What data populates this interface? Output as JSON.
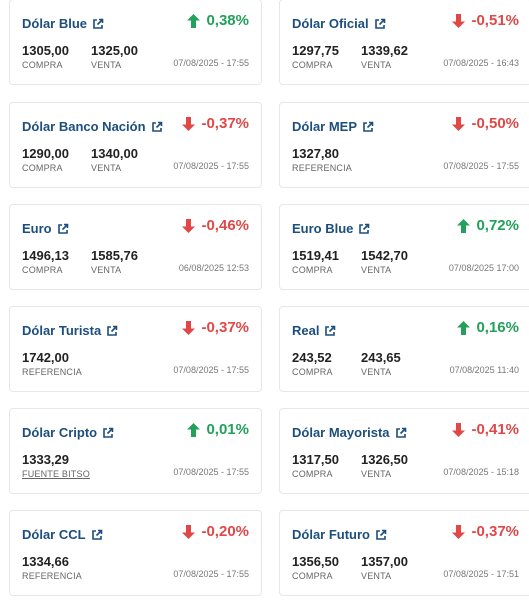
{
  "colors": {
    "title": "#1c4e7e",
    "up": "#23a05a",
    "down": "#e04848"
  },
  "cards": [
    {
      "name": "Dólar Blue",
      "change": "0,38%",
      "direction": "up",
      "values": [
        {
          "num": "1305,00",
          "label": "COMPRA"
        },
        {
          "num": "1325,00",
          "label": "VENTA"
        }
      ],
      "date": "07/08/2025 - 17:55"
    },
    {
      "name": "Dólar Oficial",
      "change": "-0,51%",
      "direction": "down",
      "values": [
        {
          "num": "1297,75",
          "label": "COMPRA"
        },
        {
          "num": "1339,62",
          "label": "VENTA"
        }
      ],
      "date": "07/08/2025 - 16:43"
    },
    {
      "name": "Dólar Banco Nación",
      "change": "-0,37%",
      "direction": "down",
      "values": [
        {
          "num": "1290,00",
          "label": "COMPRA"
        },
        {
          "num": "1340,00",
          "label": "VENTA"
        }
      ],
      "date": "07/08/2025 - 17:55"
    },
    {
      "name": "Dólar MEP",
      "change": "-0,50%",
      "direction": "down",
      "values": [
        {
          "num": "1327,80",
          "label": "REFERENCIA"
        }
      ],
      "date": "07/08/2025 - 17:55"
    },
    {
      "name": "Euro",
      "change": "-0,46%",
      "direction": "down",
      "values": [
        {
          "num": "1496,13",
          "label": "COMPRA"
        },
        {
          "num": "1585,76",
          "label": "VENTA"
        }
      ],
      "date": "06/08/2025 12:53"
    },
    {
      "name": "Euro Blue",
      "change": "0,72%",
      "direction": "up",
      "values": [
        {
          "num": "1519,41",
          "label": "COMPRA"
        },
        {
          "num": "1542,70",
          "label": "VENTA"
        }
      ],
      "date": "07/08/2025 17:00"
    },
    {
      "name": "Dólar Turista",
      "change": "-0,37%",
      "direction": "down",
      "values": [
        {
          "num": "1742,00",
          "label": "REFERENCIA"
        }
      ],
      "date": "07/08/2025 - 17:55"
    },
    {
      "name": "Real",
      "change": "0,16%",
      "direction": "up",
      "values": [
        {
          "num": "243,52",
          "label": "COMPRA"
        },
        {
          "num": "243,65",
          "label": "VENTA"
        }
      ],
      "date": "07/08/2025 11:40"
    },
    {
      "name": "Dólar Cripto",
      "change": "0,01%",
      "direction": "up",
      "values": [
        {
          "num": "1333,29",
          "label": "FUENTE BITSO",
          "underline": true
        }
      ],
      "date": "07/08/2025 - 17:55"
    },
    {
      "name": "Dólar Mayorista",
      "change": "-0,41%",
      "direction": "down",
      "values": [
        {
          "num": "1317,50",
          "label": "COMPRA"
        },
        {
          "num": "1326,50",
          "label": "VENTA"
        }
      ],
      "date": "07/08/2025 - 15:18"
    },
    {
      "name": "Dólar CCL",
      "change": "-0,20%",
      "direction": "down",
      "values": [
        {
          "num": "1334,66",
          "label": "REFERENCIA"
        }
      ],
      "date": "07/08/2025 - 17:55"
    },
    {
      "name": "Dólar Futuro",
      "change": "-0,37%",
      "direction": "down",
      "values": [
        {
          "num": "1356,50",
          "label": "COMPRA"
        },
        {
          "num": "1357,00",
          "label": "VENTA"
        }
      ],
      "date": "07/08/2025 - 17:51"
    }
  ]
}
